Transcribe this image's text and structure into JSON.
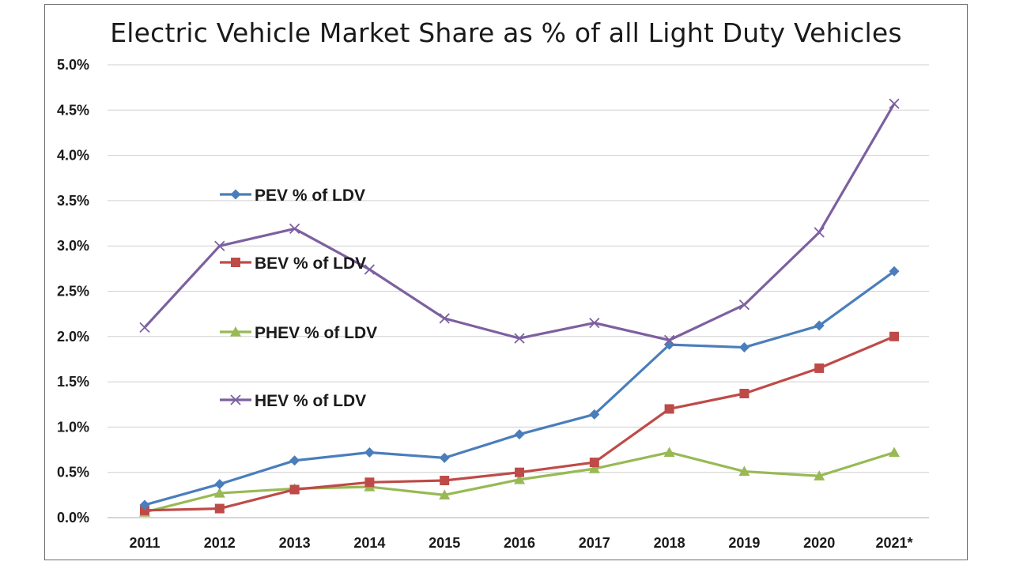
{
  "chart_data": {
    "type": "line",
    "title": "Electric Vehicle Market Share as % of all Light Duty Vehicles",
    "xlabel": "",
    "ylabel": "",
    "categories": [
      "2011",
      "2012",
      "2013",
      "2014",
      "2015",
      "2016",
      "2017",
      "2018",
      "2019",
      "2020",
      "2021*"
    ],
    "ylim": [
      0,
      5.0
    ],
    "y_ticks": [
      "0.0%",
      "0.5%",
      "1.0%",
      "1.5%",
      "2.0%",
      "2.5%",
      "3.0%",
      "3.5%",
      "4.0%",
      "4.5%",
      "5.0%"
    ],
    "y_tick_values": [
      0,
      0.5,
      1.0,
      1.5,
      2.0,
      2.5,
      3.0,
      3.5,
      4.0,
      4.5,
      5.0
    ],
    "grid": true,
    "legend_position": "left, inside plot",
    "series": [
      {
        "name": "PEV % of LDV",
        "color": "#4a7ebb",
        "marker": "diamond",
        "values": [
          0.14,
          0.37,
          0.63,
          0.72,
          0.66,
          0.92,
          1.14,
          1.91,
          1.88,
          2.12,
          2.72
        ]
      },
      {
        "name": "BEV % of LDV",
        "color": "#be4b48",
        "marker": "square",
        "values": [
          0.08,
          0.1,
          0.31,
          0.39,
          0.41,
          0.5,
          0.61,
          1.2,
          1.37,
          1.65,
          2.0
        ]
      },
      {
        "name": "PHEV % of LDV",
        "color": "#98b954",
        "marker": "triangle",
        "values": [
          0.06,
          0.27,
          0.32,
          0.34,
          0.25,
          0.42,
          0.54,
          0.72,
          0.51,
          0.46,
          0.72
        ]
      },
      {
        "name": "HEV % of LDV",
        "color": "#7d60a0",
        "marker": "x",
        "values": [
          2.1,
          3.0,
          3.19,
          2.74,
          2.2,
          1.98,
          2.15,
          1.96,
          2.35,
          3.15,
          4.57
        ]
      }
    ]
  }
}
